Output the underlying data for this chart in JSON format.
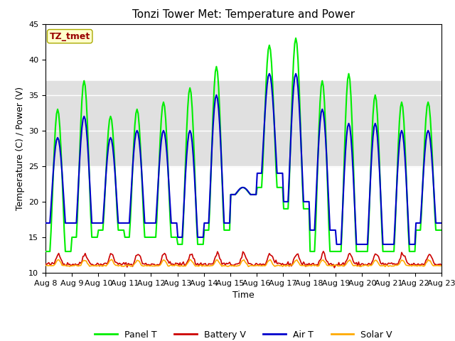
{
  "title": "Tonzi Tower Met: Temperature and Power",
  "xlabel": "Time",
  "ylabel": "Temperature (C) / Power (V)",
  "ylim": [
    10,
    45
  ],
  "xtick_labels": [
    "Aug 8",
    "Aug 9",
    "Aug 10",
    "Aug 11",
    "Aug 12",
    "Aug 13",
    "Aug 14",
    "Aug 15",
    "Aug 16",
    "Aug 17",
    "Aug 18",
    "Aug 19",
    "Aug 20",
    "Aug 21",
    "Aug 22",
    "Aug 23"
  ],
  "legend_labels": [
    "Panel T",
    "Battery V",
    "Air T",
    "Solar V"
  ],
  "panel_color": "#00ee00",
  "battery_color": "#cc0000",
  "air_color": "#0000cc",
  "solar_color": "#ffaa00",
  "annotation_text": "TZ_tmet",
  "annotation_fg": "#990000",
  "annotation_bg": "#ffffcc",
  "bg_band_low": 25,
  "bg_band_high": 37,
  "bg_color": "#e0e0e0",
  "plot_bg": "#ffffff",
  "title_fontsize": 11,
  "axis_fontsize": 9,
  "tick_fontsize": 8,
  "panel_peaks": [
    33,
    37,
    32,
    33,
    34,
    36,
    39,
    22,
    42,
    43,
    37,
    38,
    35,
    34,
    34
  ],
  "panel_troughs": [
    13,
    15,
    16,
    15,
    15,
    14,
    16,
    21,
    22,
    19,
    13,
    13,
    13,
    13,
    16
  ],
  "air_peaks": [
    29,
    32,
    29,
    30,
    30,
    30,
    35,
    22,
    38,
    38,
    33,
    31,
    31,
    30,
    30
  ],
  "air_troughs": [
    17,
    17,
    17,
    17,
    17,
    15,
    17,
    21,
    24,
    20,
    16,
    14,
    14,
    14,
    17
  ]
}
